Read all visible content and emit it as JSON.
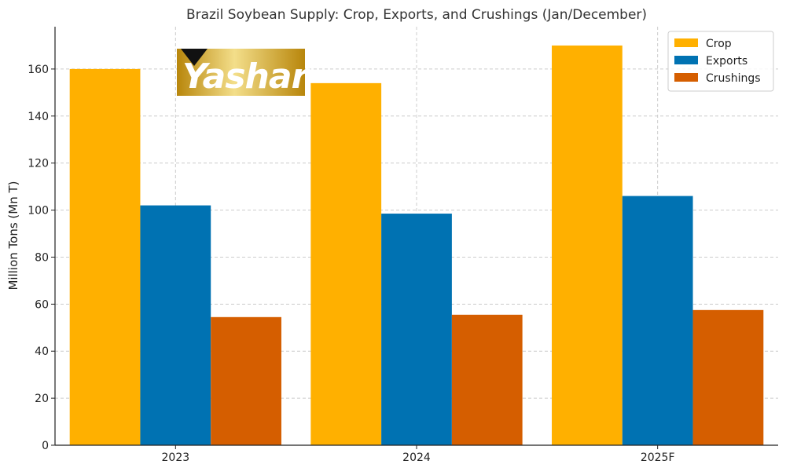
{
  "chart_data": {
    "type": "bar",
    "title": "Brazil Soybean Supply: Crop, Exports, and Crushings (Jan/December)",
    "xlabel": "",
    "ylabel": "Million Tons (Mn T)",
    "categories": [
      "2023",
      "2024",
      "2025F"
    ],
    "series": [
      {
        "name": "Crop",
        "color": "#FFB000",
        "values": [
          160,
          154,
          170
        ]
      },
      {
        "name": "Exports",
        "color": "#0072B2",
        "values": [
          102,
          98.5,
          106
        ]
      },
      {
        "name": "Crushings",
        "color": "#D55E00",
        "values": [
          54.5,
          55.5,
          57.5
        ]
      }
    ],
    "ylim": [
      0,
      178
    ],
    "yticks": [
      0,
      20,
      40,
      60,
      80,
      100,
      120,
      140,
      160
    ],
    "grid": true,
    "legend_position": "top-right"
  },
  "logo": {
    "text": "Yashar",
    "colors": {
      "gold_dark": "#B8860B",
      "gold_light": "#F3DE8A",
      "mark": "#111111"
    }
  }
}
